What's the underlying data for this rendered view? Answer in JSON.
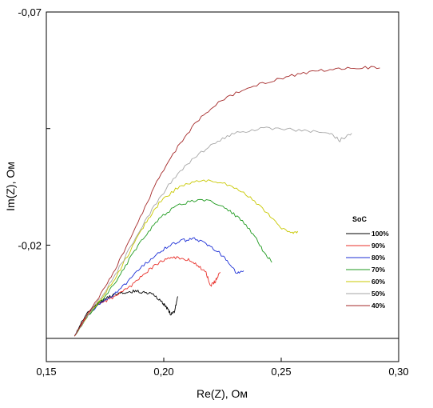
{
  "chart_data": {
    "type": "line",
    "title": "",
    "xlabel": "Re(Z), Ом",
    "ylabel": "Im(Z), Ом",
    "xlim": [
      0.15,
      0.3
    ],
    "ylim": [
      -0.07,
      0.0
    ],
    "y_inverted": true,
    "x_ticks": [
      {
        "value": 0.15,
        "label": "0,15"
      },
      {
        "value": 0.2,
        "label": "0,20"
      },
      {
        "value": 0.25,
        "label": "0,25"
      },
      {
        "value": 0.3,
        "label": "0,30"
      }
    ],
    "y_ticks": [
      {
        "value": -0.07,
        "label": "-0,07"
      },
      {
        "value": -0.02,
        "label": "-0,02"
      }
    ],
    "y_minor_ticks": [
      -0.045
    ],
    "reference_line_y": 0.0,
    "grid": false,
    "legend": {
      "title": "SoC",
      "position": "right"
    },
    "series": [
      {
        "name": "100%",
        "color": "#000000",
        "x": [
          0.162,
          0.165,
          0.168,
          0.172,
          0.176,
          0.18,
          0.184,
          0.188,
          0.192,
          0.196,
          0.199,
          0.201,
          0.203,
          0.2045,
          0.206
        ],
        "y": [
          -0.0005,
          -0.0035,
          -0.0058,
          -0.0075,
          -0.0087,
          -0.0095,
          -0.01,
          -0.0101,
          -0.0099,
          -0.0092,
          -0.008,
          -0.0067,
          -0.0052,
          -0.0058,
          -0.009
        ]
      },
      {
        "name": "90%",
        "color": "#e8302a",
        "x": [
          0.162,
          0.166,
          0.17,
          0.175,
          0.18,
          0.185,
          0.19,
          0.195,
          0.2,
          0.205,
          0.21,
          0.214,
          0.218,
          0.22,
          0.222,
          0.224
        ],
        "y": [
          -0.0005,
          -0.004,
          -0.0065,
          -0.008,
          -0.0092,
          -0.0108,
          -0.0132,
          -0.0152,
          -0.0168,
          -0.0173,
          -0.017,
          -0.0158,
          -0.014,
          -0.0112,
          -0.0123,
          -0.0142
        ]
      },
      {
        "name": "80%",
        "color": "#1c2fd6",
        "x": [
          0.162,
          0.167,
          0.172,
          0.178,
          0.184,
          0.19,
          0.196,
          0.202,
          0.208,
          0.213,
          0.218,
          0.223,
          0.227,
          0.231,
          0.234
        ],
        "y": [
          -0.0005,
          -0.0045,
          -0.0072,
          -0.0092,
          -0.0118,
          -0.015,
          -0.0178,
          -0.0198,
          -0.021,
          -0.0213,
          -0.0203,
          -0.0186,
          -0.0166,
          -0.014,
          -0.0145
        ]
      },
      {
        "name": "70%",
        "color": "#1f9a1f",
        "x": [
          0.162,
          0.168,
          0.174,
          0.18,
          0.186,
          0.192,
          0.198,
          0.205,
          0.212,
          0.219,
          0.226,
          0.232,
          0.238,
          0.242,
          0.246
        ],
        "y": [
          -0.0005,
          -0.005,
          -0.0085,
          -0.0125,
          -0.0175,
          -0.022,
          -0.0258,
          -0.0283,
          -0.0295,
          -0.0295,
          -0.0282,
          -0.0258,
          -0.0225,
          -0.019,
          -0.0163
        ]
      },
      {
        "name": "60%",
        "color": "#c8c800",
        "x": [
          0.162,
          0.168,
          0.174,
          0.18,
          0.186,
          0.192,
          0.198,
          0.205,
          0.212,
          0.22,
          0.228,
          0.236,
          0.243,
          0.249,
          0.254,
          0.257
        ],
        "y": [
          -0.0005,
          -0.0052,
          -0.009,
          -0.0135,
          -0.019,
          -0.0245,
          -0.029,
          -0.032,
          -0.0336,
          -0.0338,
          -0.0328,
          -0.0306,
          -0.0274,
          -0.024,
          -0.0225,
          -0.023
        ]
      },
      {
        "name": "50%",
        "color": "#a6a6a6",
        "x": [
          0.162,
          0.168,
          0.175,
          0.182,
          0.19,
          0.198,
          0.206,
          0.214,
          0.222,
          0.23,
          0.24,
          0.25,
          0.26,
          0.27,
          0.275,
          0.28
        ],
        "y": [
          -0.0005,
          -0.0052,
          -0.01,
          -0.016,
          -0.0235,
          -0.03,
          -0.0355,
          -0.0392,
          -0.042,
          -0.044,
          -0.045,
          -0.045,
          -0.0445,
          -0.044,
          -0.0425,
          -0.044
        ]
      },
      {
        "name": "40%",
        "color": "#a52a2a",
        "x": [
          0.162,
          0.168,
          0.175,
          0.182,
          0.19,
          0.198,
          0.206,
          0.214,
          0.222,
          0.232,
          0.242,
          0.252,
          0.262,
          0.272,
          0.282,
          0.292
        ],
        "y": [
          -0.0005,
          -0.0055,
          -0.011,
          -0.0175,
          -0.026,
          -0.0345,
          -0.0412,
          -0.0465,
          -0.0502,
          -0.053,
          -0.0548,
          -0.056,
          -0.0572,
          -0.0578,
          -0.058,
          -0.058
        ]
      }
    ]
  }
}
